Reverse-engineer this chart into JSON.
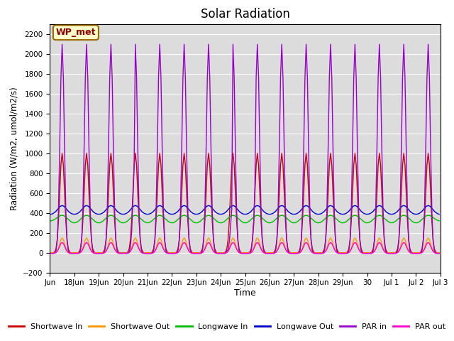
{
  "title": "Solar Radiation",
  "ylabel": "Radiation (W/m2, umol/m2/s)",
  "xlabel": "Time",
  "ylim": [
    -200,
    2300
  ],
  "yticks": [
    -200,
    0,
    200,
    400,
    600,
    800,
    1000,
    1200,
    1400,
    1600,
    1800,
    2000,
    2200
  ],
  "bg_color": "#dcdcdc",
  "annotation": "WP_met",
  "annotation_bg": "#ffffcc",
  "annotation_border": "#996600",
  "legend": [
    {
      "label": "Shortwave In",
      "color": "#cc0000"
    },
    {
      "label": "Shortwave Out",
      "color": "#ff9900"
    },
    {
      "label": "Longwave In",
      "color": "#00bb00"
    },
    {
      "label": "Longwave Out",
      "color": "#0000cc"
    },
    {
      "label": "PAR in",
      "color": "#9900cc"
    },
    {
      "label": "PAR out",
      "color": "#ff00cc"
    }
  ],
  "xtick_labels": [
    "Jun",
    "18Jun",
    "19Jun",
    "20Jun",
    "21Jun",
    "22Jun",
    "23Jun",
    "24Jun",
    "25Jun",
    "26Jun",
    "27Jun",
    "28Jun",
    "29Jun",
    "30",
    "Jul 1",
    "Jul 2",
    "Jul 3"
  ],
  "n_days": 16,
  "line_width": 1.0
}
